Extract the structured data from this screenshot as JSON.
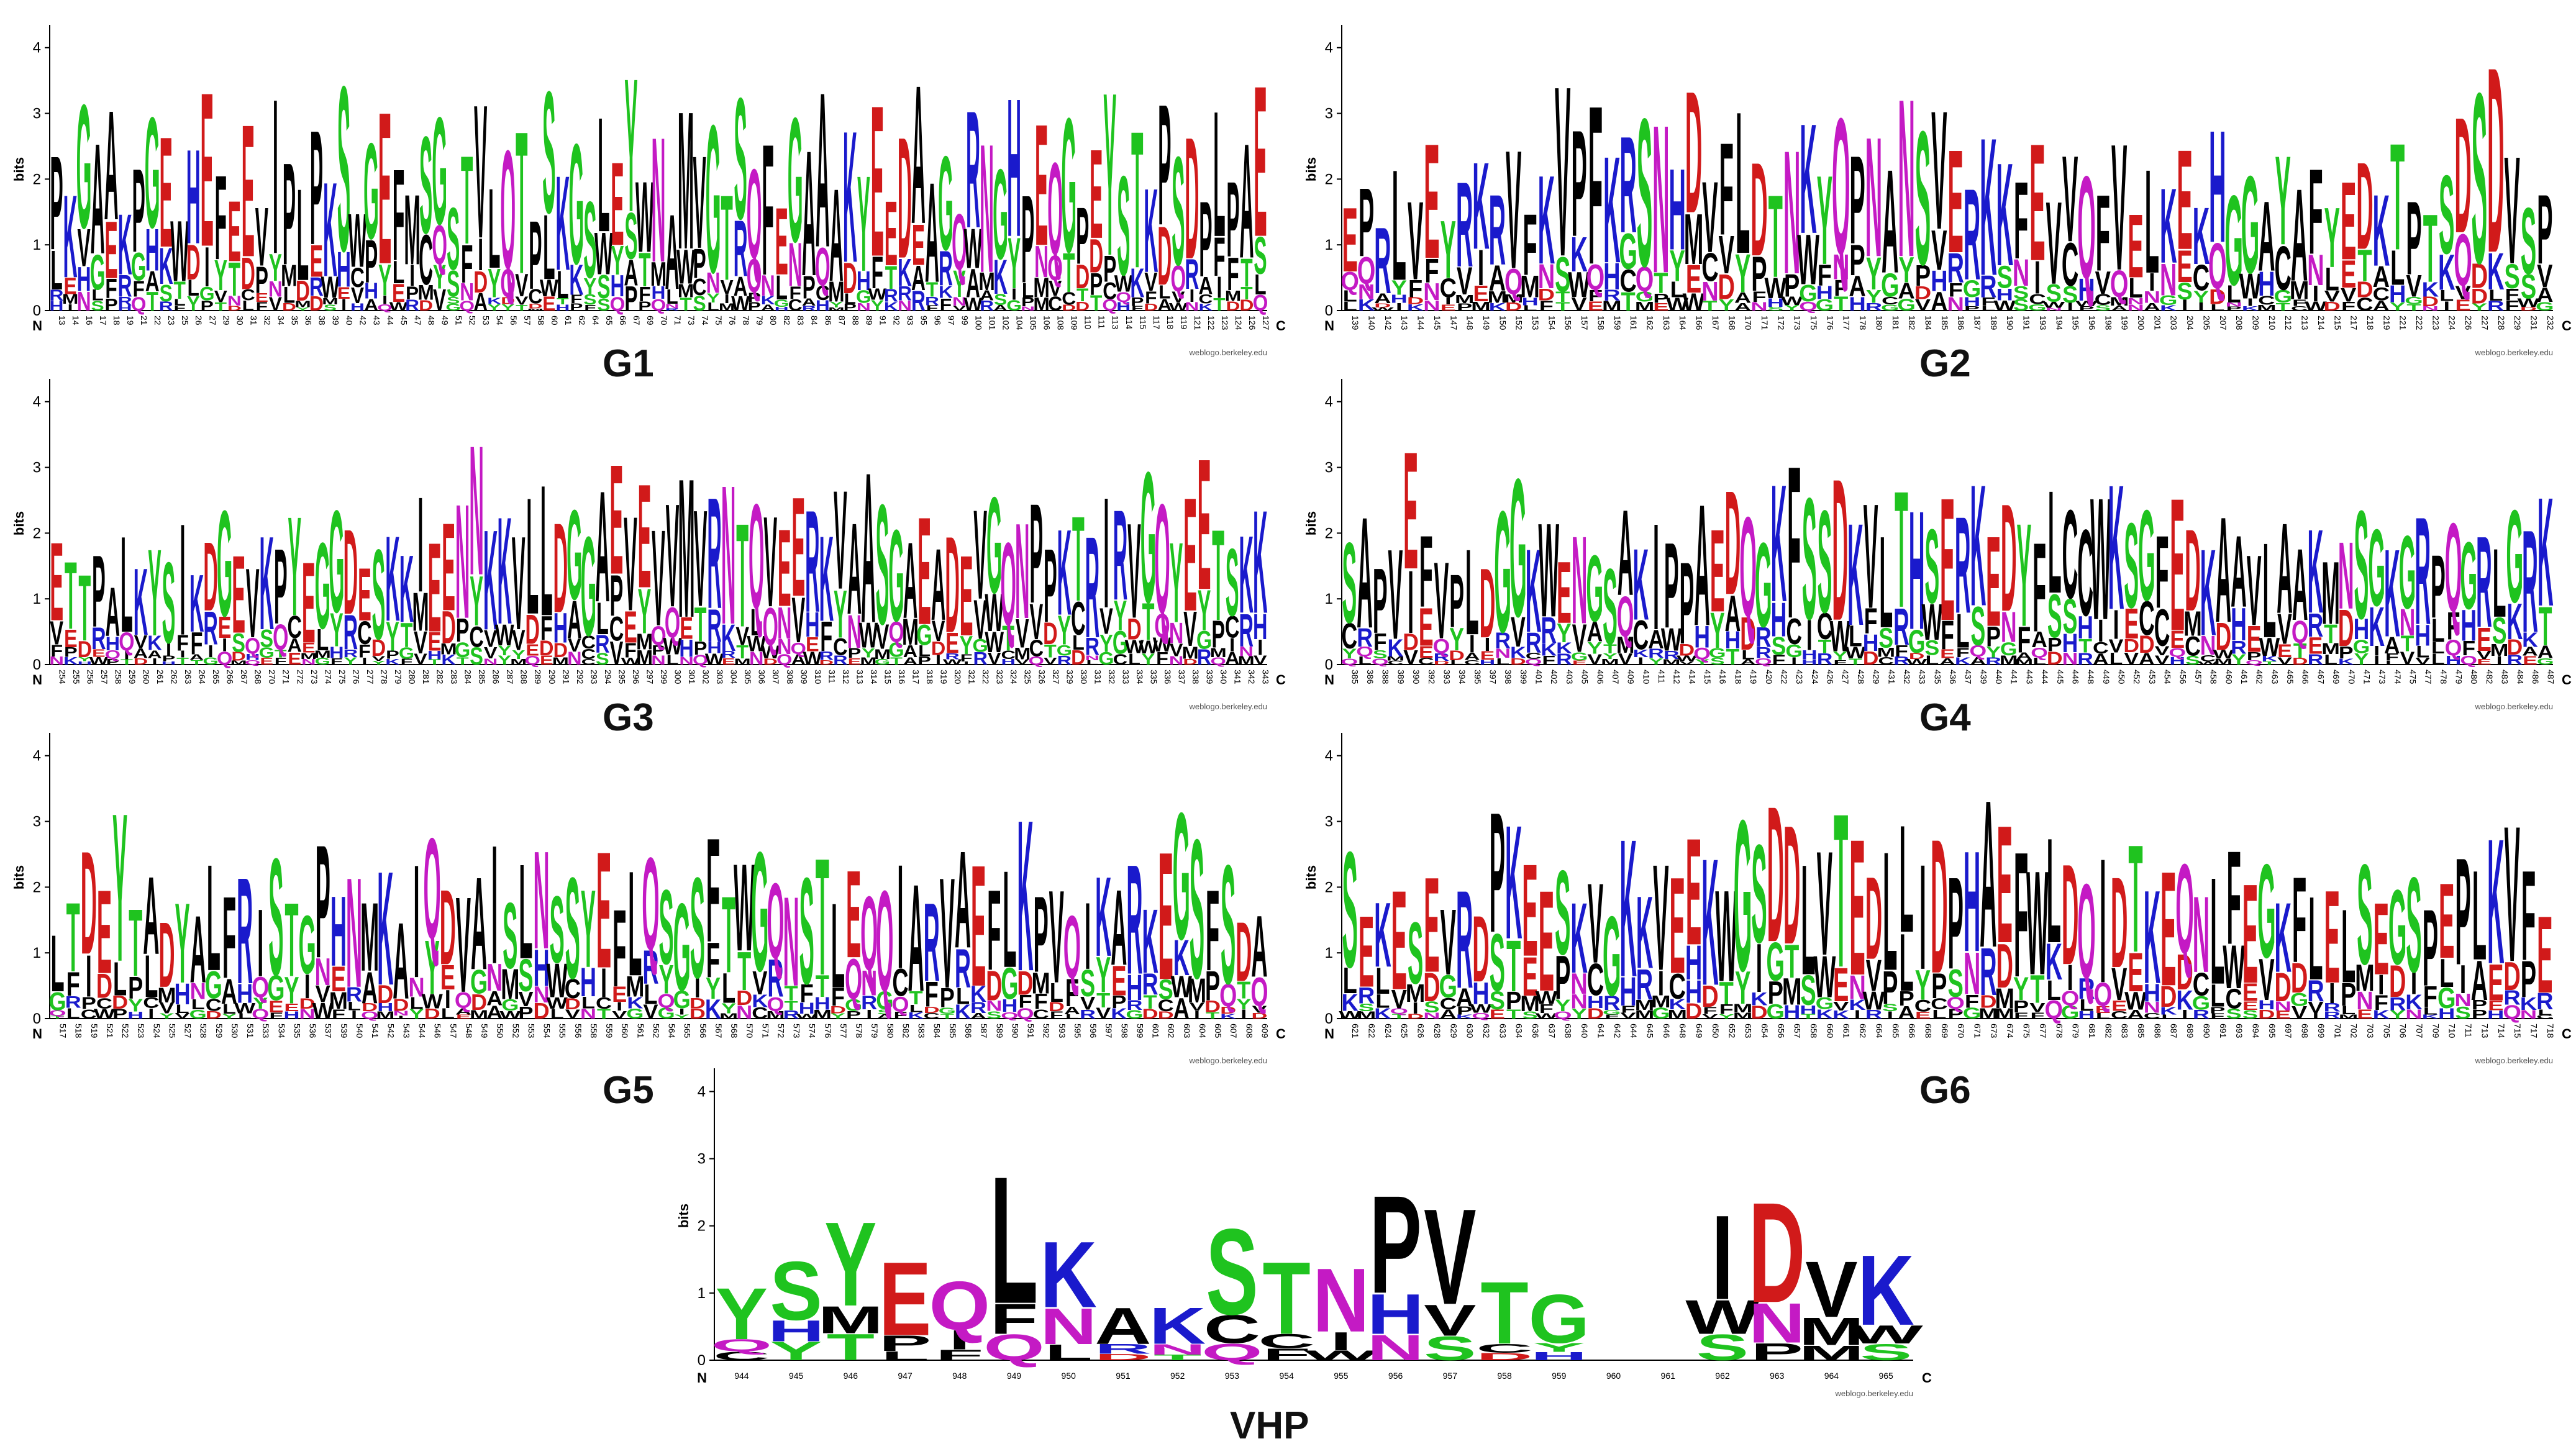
{
  "colors": {
    "hydrophobic": "#000000",
    "polar": "#1fc31f",
    "basic": "#1a1acc",
    "acidic": "#d11a1a",
    "amide": "#c41ac4"
  },
  "residue_classes": {
    "hydrophobic": "AVLIPWFMC",
    "polar": "GSTYC",
    "basic": "KRH",
    "acidic": "DE",
    "amide": "NQ"
  },
  "common": {
    "y_axis_title": "bits",
    "n_label": "N",
    "c_label": "C",
    "credit": "weblogo.berkeley.edu",
    "ylim": [
      0,
      4.3
    ],
    "yticks": [
      0,
      1,
      2,
      3,
      4
    ]
  },
  "chart_data": [
    {
      "type": "sequence-logo",
      "label": "G1",
      "start": 13,
      "end": 127,
      "position_step": 1,
      "consensus": "PKGAAKPGEWHEFEEVIPLPKSWGEFMSGSTVLQTPSKGSLEYWNAMVGTSQFEGAAAKYEEDAAGQRNGHPEQGPEYSTKPSDPLPAE",
      "heights": [
        2.4,
        1.8,
        3.2,
        2.6,
        3.1,
        1.5,
        2.2,
        3.0,
        2.7,
        1.4,
        2.5,
        3.4,
        2.1,
        1.7,
        2.9,
        1.6,
        3.3,
        2.3,
        1.9,
        2.8,
        2.0,
        3.5,
        1.5,
        2.6,
        3.1,
        2.2,
        1.8,
        2.7,
        3.0,
        1.6,
        2.4,
        3.2,
        1.9,
        2.5,
        2.8,
        1.4,
        3.4,
        2.1,
        2.6,
        1.7,
        3.0,
        2.3,
        3.6,
        2.0,
        2.7,
        1.5,
        3.1,
        2.4,
        2.9,
        1.8,
        3.3,
        2.2,
        2.6,
        1.6,
        3.0,
        2.5,
        3.4,
        1.9,
        2.8,
        2.1,
        3.2,
        1.7,
        2.7,
        3.5,
        2.0,
        2.4,
        1.5,
        3.1,
        2.6,
        2.2,
        3.3,
        1.8,
        2.9,
        2.3,
        3.0,
        1.6,
        2.5,
        3.4,
        2.1,
        2.8,
        1.9,
        3.2,
        2.4,
        2.7,
        1.7,
        3.1,
        2.0,
        2.6,
        3.5
      ]
    },
    {
      "type": "sequence-logo",
      "label": "G2",
      "start": 139,
      "end": 232,
      "position_step": 1,
      "consensus": "EPRLVEYRKRVFKVPFKRSNHDVFLDTNKYQPNANSVERKKFEVVQFVELKEKHGGAYAFYEDKTPTSDSDVSPEPFL",
      "heights": [
        1.6,
        1.9,
        1.3,
        2.2,
        1.7,
        2.6,
        1.4,
        2.0,
        2.3,
        1.8,
        2.5,
        1.5,
        2.1,
        3.5,
        2.8,
        3.2,
        2.4,
        2.7,
        3.0,
        2.9,
        2.2,
        3.4,
        2.0,
        2.6,
        3.1,
        2.3,
        1.8,
        2.5,
        2.9,
        2.1,
        3.0,
        2.4,
        2.7,
        2.2,
        3.3,
        2.8,
        3.1,
        2.5,
        1.9,
        2.7,
        2.3,
        2.0,
        2.6,
        1.7,
        2.4,
        2.1,
        1.8,
        2.6,
        1.5,
        2.2,
        1.9,
        2.5,
        1.6,
        2.8,
        1.8,
        2.1,
        1.7,
        2.4,
        1.9,
        2.2,
        1.6,
        2.0,
        2.3,
        1.8,
        2.6,
        1.7,
        1.5,
        2.1,
        3.0,
        3.4,
        3.8,
        2.4,
        1.6,
        1.8
      ]
    },
    {
      "type": "sequence-logo",
      "label": "G3",
      "start": 254,
      "end": 343,
      "position_step": 1,
      "consensus": "ETTPALKYSIKDGEVKPYEGGDESKKIEENNKKVLLDGGAEVEVVMVRNTQVEERKVAASGAEADEVGQNPPKTRIRVGQYEETSKK",
      "heights": [
        1.9,
        1.6,
        1.4,
        1.7,
        1.2,
        2.0,
        1.5,
        1.8,
        1.6,
        2.2,
        1.4,
        1.9,
        2.4,
        1.7,
        1.5,
        2.0,
        1.8,
        2.3,
        1.6,
        1.9,
        2.4,
        2.1,
        1.5,
        1.8,
        2.0,
        1.7,
        2.6,
        1.9,
        2.2,
        2.5,
        3.4,
        2.1,
        2.3,
        2.0,
        2.6,
        2.8,
        2.2,
        2.4,
        2.0,
        2.7,
        3.1,
        2.3,
        2.8,
        2.1,
        2.5,
        2.9,
        2.4,
        2.6,
        2.8,
        2.2,
        2.5,
        2.3,
        2.1,
        2.6,
        2.4,
        2.0,
        2.7,
        2.2,
        3.0,
        2.5,
        2.1,
        1.9,
        2.3,
        1.8,
        2.0,
        1.7,
        2.4,
        2.6,
        1.9,
        2.2,
        2.5,
        1.8,
        2.1,
        2.3,
        2.0,
        2.6,
        2.4,
        2.2,
        3.0,
        2.5,
        1.9,
        2.6,
        3.2,
        2.1,
        1.8,
        2.0,
        2.4
      ]
    },
    {
      "type": "sequence-logo",
      "label": "G4",
      "start": 385,
      "end": 487,
      "position_step": 1,
      "consensus": "SAPVEFVPLDGGKWENGSAKIPPAEDQGKFSSDKVLTHSERKEDYFLCCWKSGFEDKAAVLAAKMNSGKGRPQGRLGRK",
      "heights": [
        1.9,
        2.3,
        1.5,
        1.8,
        3.3,
        2.0,
        1.6,
        1.4,
        1.8,
        1.5,
        2.4,
        2.9,
        1.8,
        2.2,
        1.6,
        2.0,
        1.7,
        1.5,
        2.4,
        1.8,
        2.2,
        1.9,
        1.6,
        2.5,
        2.1,
        2.7,
        2.3,
        1.9,
        2.8,
        3.1,
        2.6,
        2.4,
        2.9,
        2.2,
        2.5,
        2.0,
        2.7,
        2.4,
        2.1,
        2.6,
        2.3,
        2.8,
        2.0,
        2.5,
        2.2,
        1.9,
        2.7,
        2.4,
        2.1,
        2.6,
        2.8,
        2.2,
        2.4,
        2.0,
        2.6,
        2.1,
        1.8,
        2.3,
        2.0,
        1.7,
        1.9,
        2.2,
        1.8,
        2.1,
        1.6,
        1.9,
        2.4,
        2.1,
        1.8,
        2.0,
        2.3,
        1.7,
        2.2,
        1.9,
        2.0,
        1.8,
        2.4,
        2.1,
        2.6
      ]
    },
    {
      "type": "sequence-logo",
      "label": "G5",
      "start": 517,
      "end": 609,
      "position_step": 1,
      "consensus": "LTDEYTADYALFRISTGPHNMKAIQDVAISLNSSYEFLQSGSFTWGQNSTLEQQIARVAEFLKPVQIKARKEGSFSDA",
      "heights": [
        1.3,
        1.8,
        2.6,
        2.0,
        3.2,
        1.7,
        2.2,
        1.5,
        1.8,
        1.6,
        2.4,
        1.9,
        2.2,
        1.7,
        2.5,
        1.8,
        1.6,
        2.7,
        1.9,
        2.2,
        1.8,
        2.3,
        1.5,
        2.4,
        2.8,
        2.0,
        1.9,
        2.2,
        2.7,
        1.8,
        2.4,
        2.6,
        1.9,
        2.2,
        2.0,
        2.6,
        1.7,
        2.3,
        2.5,
        2.0,
        1.8,
        2.2,
        2.8,
        1.9,
        2.4,
        2.6,
        2.1,
        1.9,
        2.2,
        2.5,
        1.8,
        2.3,
        1.9,
        2.0,
        2.4,
        2.1,
        1.8,
        2.2,
        2.6,
        2.4,
        2.0,
        2.3,
        3.1,
        1.9,
        2.0,
        1.6,
        1.8,
        2.2,
        2.0,
        2.4,
        1.7,
        2.6,
        3.2,
        2.8,
        2.0,
        2.4,
        1.5,
        1.6
      ]
    },
    {
      "type": "sequence-logo",
      "label": "G6",
      "start": 621,
      "end": 718,
      "position_step": 1,
      "consensus": "SEKESEVRDPKEESKVGKKVEEKWGSDDLVTEDLLIDPHAEFWLDQIDTKEQNLFEGKFLELSEGSPEPLKVFEG",
      "heights": [
        2.6,
        1.6,
        1.8,
        2.0,
        1.5,
        2.2,
        1.7,
        2.0,
        1.6,
        3.2,
        3.0,
        2.4,
        2.0,
        2.3,
        1.8,
        2.1,
        1.6,
        2.8,
        1.9,
        2.4,
        2.2,
        2.8,
        2.5,
        2.0,
        3.1,
        2.7,
        3.3,
        3.0,
        2.4,
        2.6,
        3.2,
        2.8,
        2.2,
        2.6,
        3.0,
        2.4,
        2.8,
        2.2,
        2.6,
        3.4,
        3.0,
        2.6,
        2.3,
        2.8,
        2.4,
        2.1,
        2.5,
        2.2,
        2.7,
        2.0,
        2.3,
        2.4,
        1.9,
        2.2,
        2.6,
        2.1,
        2.4,
        1.8,
        2.2,
        1.9,
        2.0,
        1.7,
        2.4,
        1.8,
        2.0,
        2.2,
        1.7,
        2.1,
        2.5,
        2.3,
        2.8,
        3.0,
        2.3,
        1.6
      ]
    },
    {
      "type": "sequence-logo",
      "label": "VHP",
      "start": 944,
      "end": 965,
      "position_step": 1,
      "consensus": "YSYEQLKAKSTNPVTGXXIDVK",
      "heights": [
        1.1,
        1.5,
        2.1,
        1.5,
        1.2,
        2.8,
        1.8,
        0.8,
        0.8,
        2.0,
        1.5,
        1.4,
        2.5,
        2.3,
        1.2,
        1.0,
        0.0,
        0.0,
        2.2,
        2.4,
        1.5,
        1.6
      ],
      "empty_positions": [
        960,
        961
      ]
    }
  ]
}
